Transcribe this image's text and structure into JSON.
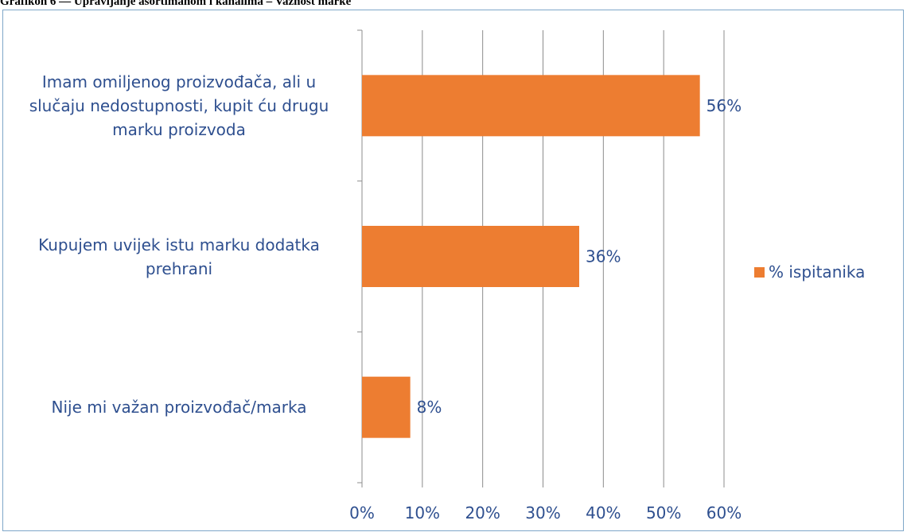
{
  "caption": "Grafikon 6 — Upravljanje asortimanom i kanalima – Važnost marke",
  "chart_data": {
    "type": "bar",
    "orientation": "horizontal",
    "categories": [
      "Imam omiljenog proizvođača, ali u slučaju nedostupnosti, kupit ću drugu marku proizvoda",
      "Kupujem uvijek istu marku dodatka prehrani",
      "Nije mi važan proizvođač/marka"
    ],
    "category_lines": [
      [
        "Imam omiljenog proizvođača, ali u",
        "slučaju nedostupnosti, kupit ću drugu",
        "marku proizvoda"
      ],
      [
        "Kupujem uvijek istu marku dodatka",
        "prehrani"
      ],
      [
        "Nije mi važan proizvođač/marka"
      ]
    ],
    "series": [
      {
        "name": "% ispitanika",
        "values": [
          56,
          36,
          8
        ],
        "data_labels": [
          "56%",
          "36%",
          "8%"
        ],
        "color": "#ed7d31"
      }
    ],
    "xlim": [
      0,
      60
    ],
    "x_ticks": [
      "0%",
      "10%",
      "20%",
      "30%",
      "40%",
      "50%",
      "60%"
    ],
    "grid": true,
    "legend_position": "right",
    "colors": {
      "bar": "#ed7d31",
      "text": "#2e4f8f",
      "grid": "#8c8c8c",
      "border": "#7fa7c9"
    }
  }
}
